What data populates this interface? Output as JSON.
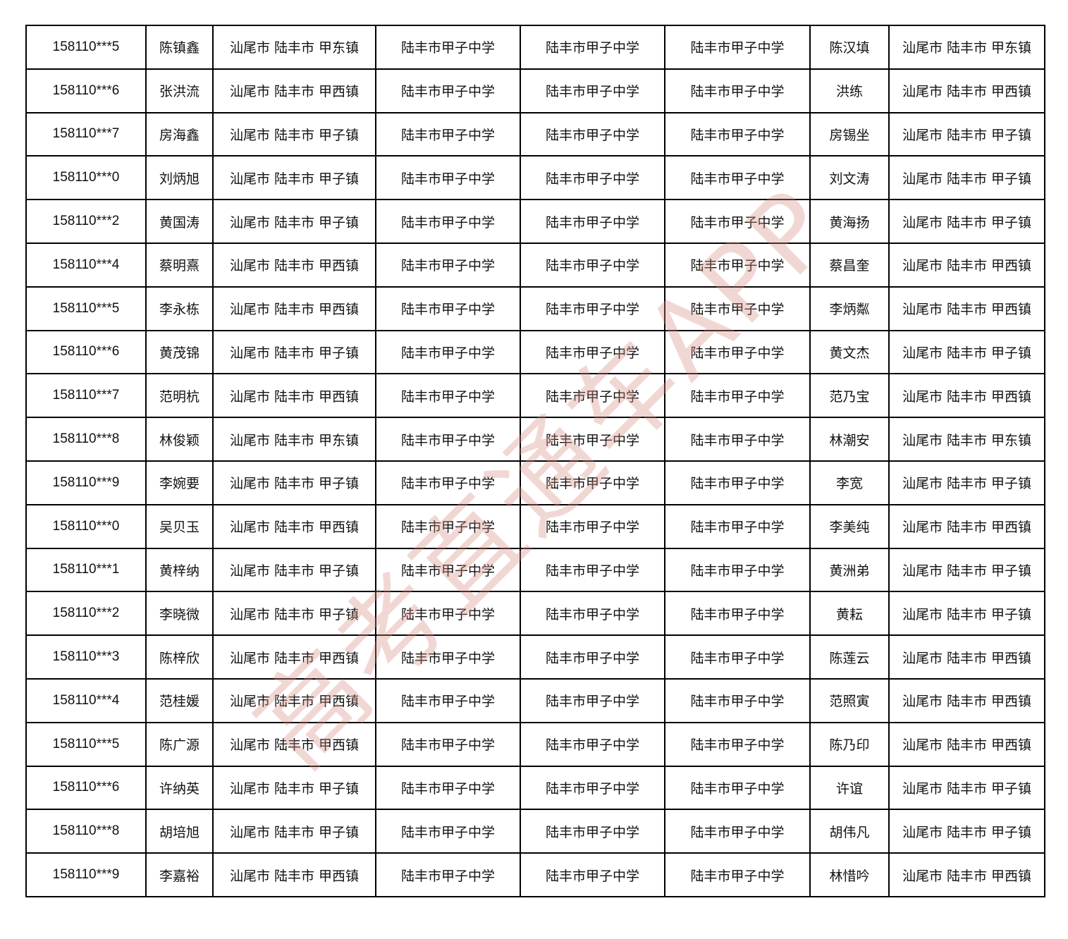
{
  "school": "陆丰市甲子中学",
  "watermark": "高考直通车APP",
  "rows": [
    {
      "id": "158110***5",
      "name": "陈镇鑫",
      "addr": "汕尾市 陆丰市 甲东镇",
      "parent": "陈汉填"
    },
    {
      "id": "158110***6",
      "name": "张洪流",
      "addr": "汕尾市 陆丰市 甲西镇",
      "parent": "洪练"
    },
    {
      "id": "158110***7",
      "name": "房海鑫",
      "addr": "汕尾市 陆丰市 甲子镇",
      "parent": "房锡坐"
    },
    {
      "id": "158110***0",
      "name": "刘炳旭",
      "addr": "汕尾市 陆丰市 甲子镇",
      "parent": "刘文涛"
    },
    {
      "id": "158110***2",
      "name": "黄国涛",
      "addr": "汕尾市 陆丰市 甲子镇",
      "parent": "黄海扬"
    },
    {
      "id": "158110***4",
      "name": "蔡明熹",
      "addr": "汕尾市 陆丰市 甲西镇",
      "parent": "蔡昌奎"
    },
    {
      "id": "158110***5",
      "name": "李永栋",
      "addr": "汕尾市 陆丰市 甲西镇",
      "parent": "李炳粼"
    },
    {
      "id": "158110***6",
      "name": "黄茂锦",
      "addr": "汕尾市 陆丰市 甲子镇",
      "parent": "黄文杰"
    },
    {
      "id": "158110***7",
      "name": "范明杭",
      "addr": "汕尾市 陆丰市 甲西镇",
      "parent": "范乃宝"
    },
    {
      "id": "158110***8",
      "name": "林俊颖",
      "addr": "汕尾市 陆丰市 甲东镇",
      "parent": "林潮安"
    },
    {
      "id": "158110***9",
      "name": "李婉要",
      "addr": "汕尾市 陆丰市 甲子镇",
      "parent": "李宽"
    },
    {
      "id": "158110***0",
      "name": "吴贝玉",
      "addr": "汕尾市 陆丰市 甲西镇",
      "parent": "李美纯"
    },
    {
      "id": "158110***1",
      "name": "黄梓纳",
      "addr": "汕尾市 陆丰市 甲子镇",
      "parent": "黄洲弟"
    },
    {
      "id": "158110***2",
      "name": "李晓微",
      "addr": "汕尾市 陆丰市 甲子镇",
      "parent": "黄耘"
    },
    {
      "id": "158110***3",
      "name": "陈梓欣",
      "addr": "汕尾市 陆丰市 甲西镇",
      "parent": "陈莲云"
    },
    {
      "id": "158110***4",
      "name": "范桂媛",
      "addr": "汕尾市 陆丰市 甲西镇",
      "parent": "范照寅"
    },
    {
      "id": "158110***5",
      "name": "陈广源",
      "addr": "汕尾市 陆丰市 甲西镇",
      "parent": "陈乃印"
    },
    {
      "id": "158110***6",
      "name": "许纳英",
      "addr": "汕尾市 陆丰市 甲子镇",
      "parent": "许谊"
    },
    {
      "id": "158110***8",
      "name": "胡培旭",
      "addr": "汕尾市 陆丰市 甲子镇",
      "parent": "胡伟凡"
    },
    {
      "id": "158110***9",
      "name": "李嘉裕",
      "addr": "汕尾市 陆丰市 甲西镇",
      "parent": "林惜吟"
    }
  ]
}
